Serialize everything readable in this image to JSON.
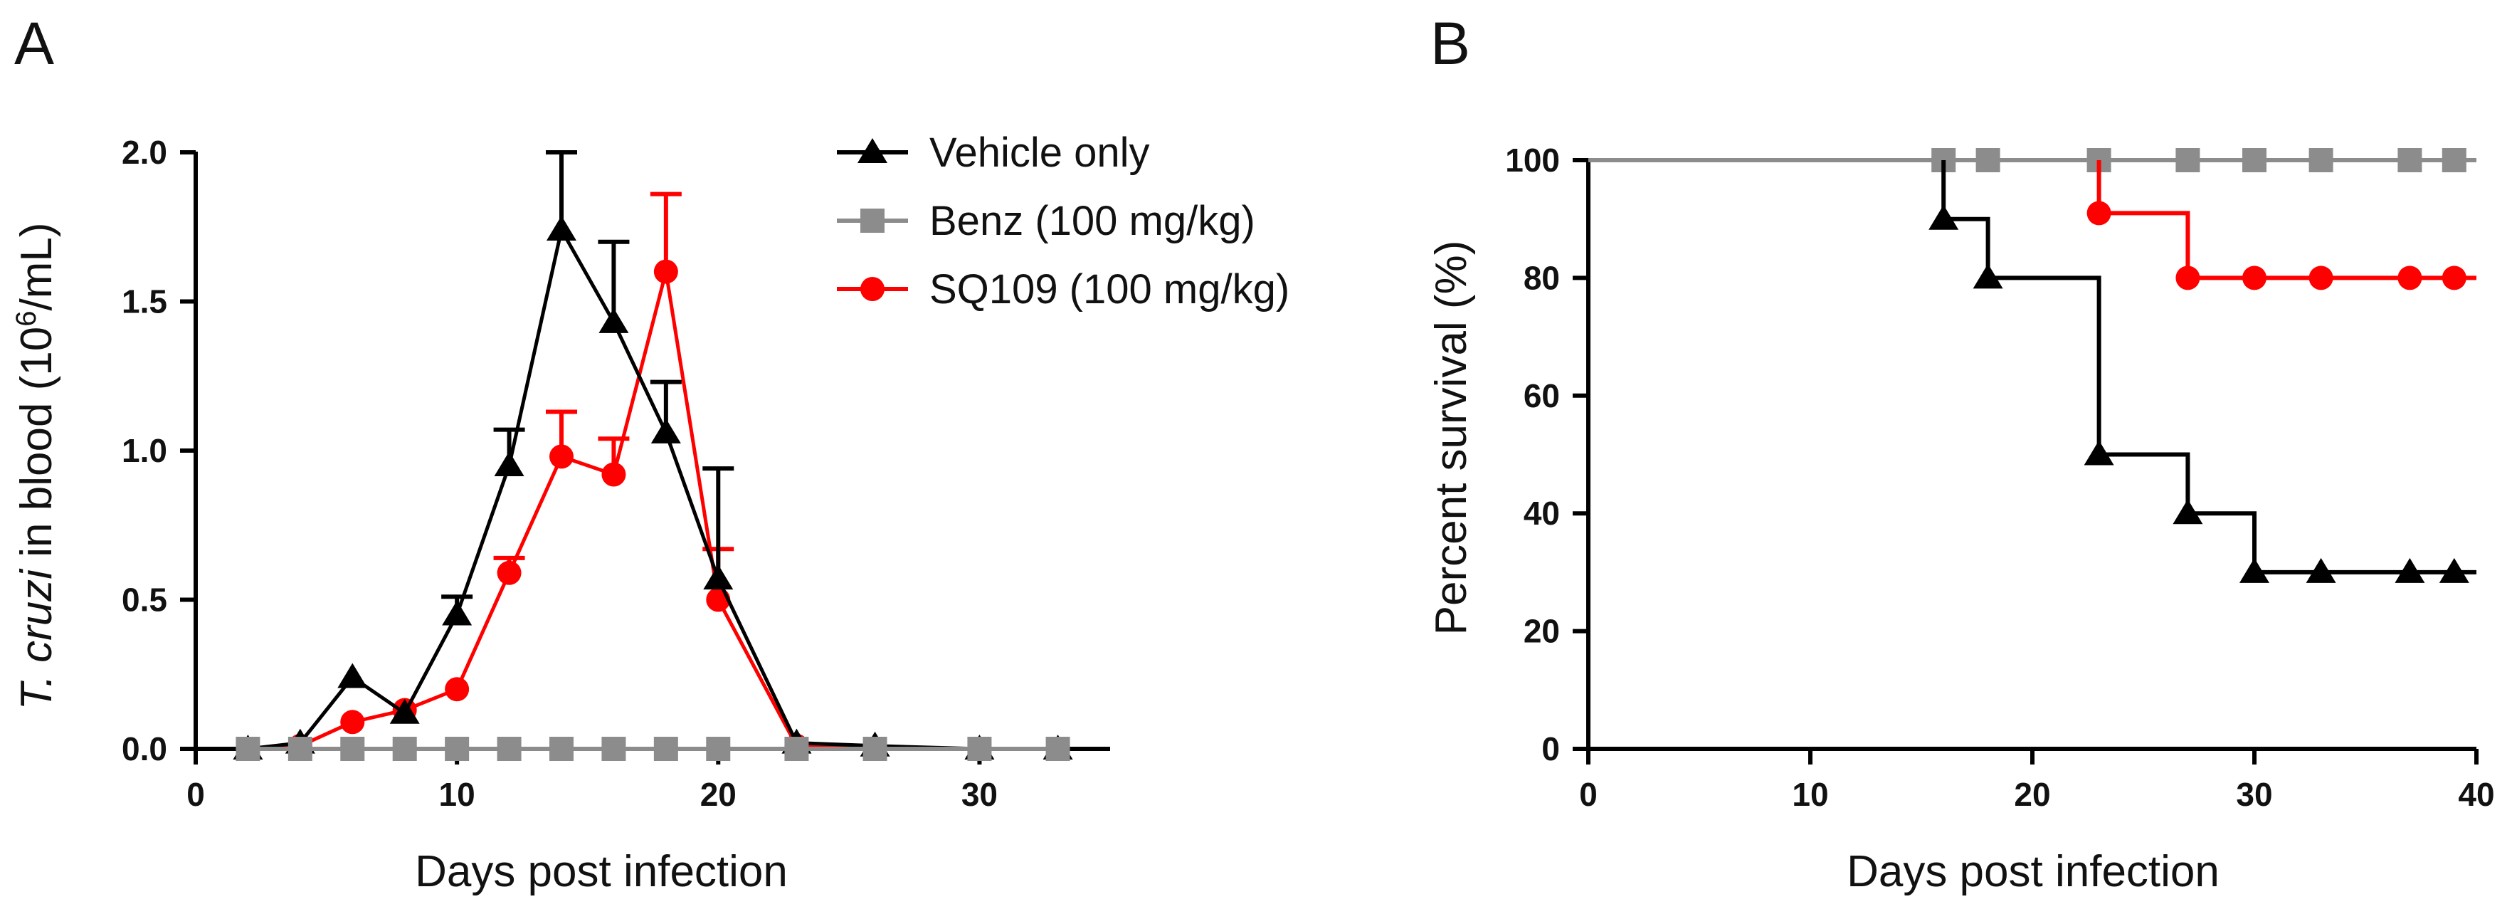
{
  "figure": {
    "panel_labels": [
      "A",
      "B"
    ]
  },
  "chart_data": [
    {
      "panel": "A",
      "type": "line",
      "title": "",
      "xlabel": "Days post infection",
      "ylabel": {
        "italic": "T. cruzi",
        "rest": " in blood  (10",
        "sup": "6",
        "tail": "/mL)"
      },
      "xlim": [
        0,
        35
      ],
      "ylim": [
        0,
        2.0
      ],
      "xticks": [
        0,
        10,
        20,
        30
      ],
      "yticks": [
        0.0,
        0.5,
        1.0,
        1.5,
        2.0
      ],
      "ytick_labels": [
        "0.0",
        "0.5",
        "1.0",
        "1.5",
        "2.0"
      ],
      "legend_position": "top-right",
      "series": [
        {
          "name": "Vehicle only",
          "color": "#000000",
          "marker": "triangle",
          "x": [
            2,
            4,
            6,
            8,
            10,
            12,
            14,
            16,
            18,
            20,
            23,
            26,
            30,
            33
          ],
          "y": [
            0.0,
            0.02,
            0.24,
            0.12,
            0.45,
            0.95,
            1.74,
            1.43,
            1.06,
            0.57,
            0.02,
            0.01,
            0.0,
            0.0
          ],
          "err": [
            0,
            0,
            0,
            0,
            0.06,
            0.12,
            0.26,
            0.27,
            0.17,
            0.37,
            0,
            0,
            0,
            0
          ]
        },
        {
          "name": "Benz (100 mg/kg)",
          "color": "#8c8c8c",
          "marker": "square",
          "x": [
            2,
            4,
            6,
            8,
            10,
            12,
            14,
            16,
            18,
            20,
            23,
            26,
            30,
            33
          ],
          "y": [
            0,
            0,
            0,
            0,
            0,
            0,
            0,
            0,
            0,
            0,
            0,
            0,
            0,
            0
          ],
          "err": [
            0,
            0,
            0,
            0,
            0,
            0,
            0,
            0,
            0,
            0,
            0,
            0,
            0,
            0
          ]
        },
        {
          "name": "SQ109 (100 mg/kg)",
          "color": "#ff0000",
          "marker": "circle",
          "x": [
            2,
            4,
            6,
            8,
            10,
            12,
            14,
            16,
            18,
            20,
            23,
            26,
            30,
            33
          ],
          "y": [
            0.0,
            0.01,
            0.09,
            0.13,
            0.2,
            0.59,
            0.98,
            0.92,
            1.6,
            0.5,
            0.01,
            0.0,
            0.0,
            0.0
          ],
          "err": [
            0,
            0,
            0,
            0,
            0,
            0.05,
            0.15,
            0.12,
            0.26,
            0.17,
            0,
            0,
            0,
            0
          ]
        }
      ]
    },
    {
      "panel": "B",
      "type": "line",
      "subtype": "step",
      "title": "",
      "xlabel": "Days post infection",
      "ylabel": "Percent survival  (%)",
      "xlim": [
        0,
        40
      ],
      "ylim": [
        0,
        100
      ],
      "xticks": [
        0,
        10,
        20,
        30,
        40
      ],
      "yticks": [
        0,
        20,
        40,
        60,
        80,
        100
      ],
      "series": [
        {
          "name": "Benz (100 mg/kg)",
          "color": "#8c8c8c",
          "marker": "square",
          "steps": [
            [
              0,
              100
            ],
            [
              40,
              100
            ]
          ],
          "markers_x": [
            16,
            18,
            23,
            27,
            30,
            33,
            37,
            39
          ],
          "markers_y": [
            100,
            100,
            100,
            100,
            100,
            100,
            100,
            100
          ]
        },
        {
          "name": "SQ109 (100 mg/kg)",
          "color": "#ff0000",
          "marker": "circle",
          "steps": [
            [
              23,
              100
            ],
            [
              23,
              91
            ],
            [
              27,
              91
            ],
            [
              27,
              80
            ],
            [
              40,
              80
            ]
          ],
          "markers_x": [
            23,
            27,
            30,
            33,
            37,
            39
          ],
          "markers_y": [
            91,
            80,
            80,
            80,
            80,
            80
          ]
        },
        {
          "name": "Vehicle only",
          "color": "#000000",
          "marker": "triangle",
          "steps": [
            [
              16,
              100
            ],
            [
              16,
              90
            ],
            [
              18,
              90
            ],
            [
              18,
              80
            ],
            [
              23,
              80
            ],
            [
              23,
              50
            ],
            [
              27,
              50
            ],
            [
              27,
              40
            ],
            [
              30,
              40
            ],
            [
              30,
              30
            ],
            [
              40,
              30
            ]
          ],
          "markers_x": [
            16,
            18,
            23,
            27,
            30,
            33,
            37,
            39
          ],
          "markers_y": [
            90,
            80,
            50,
            40,
            30,
            30,
            30,
            30
          ]
        }
      ]
    }
  ]
}
